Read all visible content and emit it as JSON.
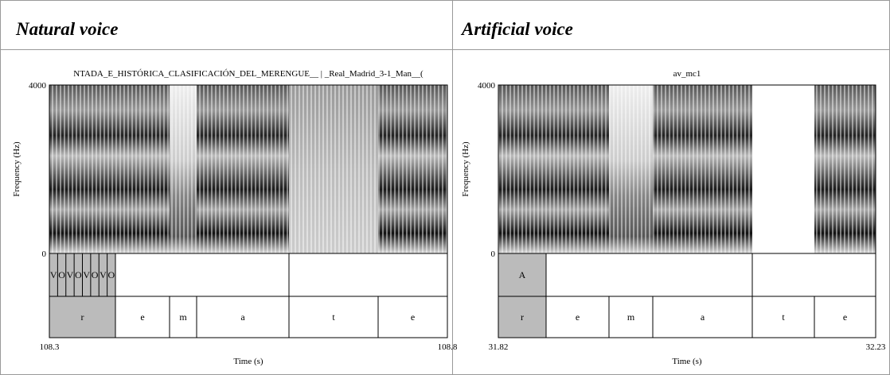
{
  "panels": [
    {
      "header": "Natural voice",
      "title": "NTADA_E_HISTÓRICA_CLASIFICACIÓN_DEL_MERENGUE__ | _Real_Madrid_3-1_Man__(",
      "y_label": "Frequency (Hz)",
      "y_ticks": [
        "4000",
        "0"
      ],
      "x_label": "Time (s)",
      "x_ticks": [
        "108.3",
        "108.8"
      ],
      "tier1": [
        "V",
        "O",
        "V",
        "O",
        "V",
        "O",
        "V",
        "O"
      ],
      "tier2": [
        "r",
        "e",
        "m",
        "a",
        "t",
        "e"
      ]
    },
    {
      "header": "Artificial voice",
      "title": "av_mc1",
      "y_label": "Frequency (Hz)",
      "y_ticks": [
        "4000",
        "0"
      ],
      "x_label": "Time (s)",
      "x_ticks": [
        "31.82",
        "32.23"
      ],
      "tier1": [
        "A"
      ],
      "tier2": [
        "r",
        "e",
        "m",
        "a",
        "t",
        "e"
      ]
    }
  ]
}
